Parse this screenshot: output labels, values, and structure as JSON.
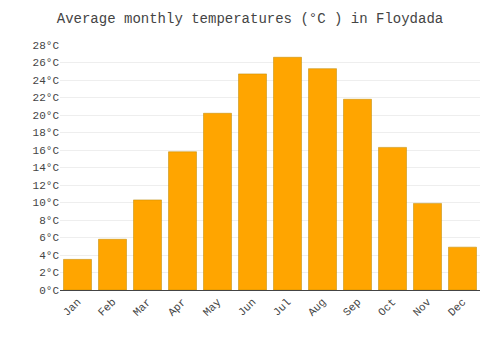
{
  "chart_data": {
    "type": "bar",
    "title": "Average monthly temperatures (°C ) in Floydada",
    "categories": [
      "Jan",
      "Feb",
      "Mar",
      "Apr",
      "May",
      "Jun",
      "Jul",
      "Aug",
      "Sep",
      "Oct",
      "Nov",
      "Dec"
    ],
    "values": [
      3.5,
      5.8,
      10.3,
      15.8,
      20.2,
      24.7,
      26.6,
      25.3,
      21.8,
      16.3,
      9.9,
      4.9
    ],
    "color": "#FFA500",
    "ylim": [
      0,
      28
    ],
    "yticks": [
      {
        "value": 0,
        "label": "0°C"
      },
      {
        "value": 2,
        "label": "2°C"
      },
      {
        "value": 4,
        "label": "4°C"
      },
      {
        "value": 6,
        "label": "6°C"
      },
      {
        "value": 8,
        "label": "8°C"
      },
      {
        "value": 10,
        "label": "10°C"
      },
      {
        "value": 12,
        "label": "12°C"
      },
      {
        "value": 14,
        "label": "14°C"
      },
      {
        "value": 16,
        "label": "16°C"
      },
      {
        "value": 18,
        "label": "18°C"
      },
      {
        "value": 20,
        "label": "20°C"
      },
      {
        "value": 22,
        "label": "22°C"
      },
      {
        "value": 24,
        "label": "24°C"
      },
      {
        "value": 26,
        "label": "26°C"
      },
      {
        "value": 28,
        "label": "28°C"
      }
    ],
    "grid": true
  }
}
